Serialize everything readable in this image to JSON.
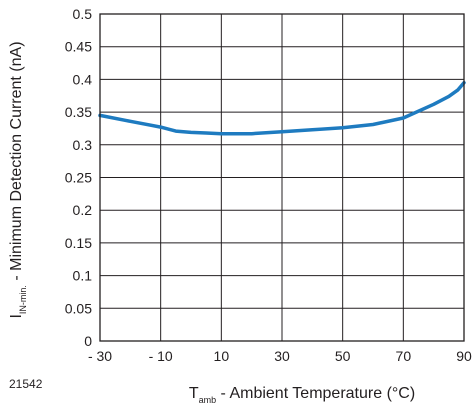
{
  "figure_id": "21542",
  "chart_data": {
    "type": "line",
    "title": "",
    "xlabel": {
      "main": "T",
      "sub": "amb",
      "rest": " - Ambient Temperature (°C)"
    },
    "ylabel": {
      "main": "I",
      "sub": "IN-min.",
      "rest": " - Minimum Detection Current (nA)"
    },
    "xlim": [
      -30,
      90
    ],
    "ylim": [
      0,
      0.5
    ],
    "x_ticks": [
      -30,
      -10,
      10,
      30,
      50,
      70,
      90
    ],
    "x_tick_labels": [
      "- 30",
      "- 10",
      "10",
      "30",
      "50",
      "70",
      "90"
    ],
    "y_ticks": [
      0,
      0.05,
      0.1,
      0.15,
      0.2,
      0.25,
      0.3,
      0.35,
      0.4,
      0.45,
      0.5
    ],
    "y_tick_labels": [
      "0",
      "0.05",
      "0.1",
      "0.15",
      "0.2",
      "0.25",
      "0.3",
      "0.35",
      "0.4",
      "0.45",
      "0.5"
    ],
    "grid": true,
    "line_color": "#1e7bc0",
    "series": [
      {
        "x": [
          -30,
          -20,
          -10,
          -5,
          0,
          5,
          10,
          20,
          30,
          40,
          50,
          60,
          70,
          80,
          85,
          88,
          90
        ],
        "y": [
          0.345,
          0.336,
          0.327,
          0.321,
          0.319,
          0.318,
          0.317,
          0.317,
          0.32,
          0.323,
          0.326,
          0.331,
          0.341,
          0.362,
          0.374,
          0.384,
          0.395
        ]
      }
    ]
  }
}
